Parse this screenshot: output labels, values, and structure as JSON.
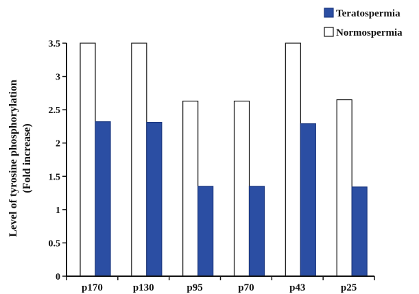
{
  "chart_data": {
    "type": "bar",
    "ylabel_line1": "Level of tyrosine phosphorylation",
    "ylabel_line2": "(Fold increase)",
    "categories": [
      "p170",
      "p130",
      "p95",
      "p70",
      "p43",
      "p25"
    ],
    "series": [
      {
        "name": "Normospermia",
        "color": "#ffffff",
        "values": [
          3.5,
          3.5,
          2.63,
          2.63,
          3.5,
          2.65
        ]
      },
      {
        "name": "Teratospermia",
        "color": "#2b4ea3",
        "values": [
          2.32,
          2.31,
          1.35,
          1.35,
          2.29,
          1.34
        ]
      }
    ],
    "ylim": [
      0,
      3.5
    ],
    "yticks": [
      "0",
      "0.5",
      "1",
      "1.5",
      "2",
      "2.5",
      "3",
      "3.5"
    ],
    "grid": false,
    "legend": {
      "placement": "top-right",
      "entries": [
        "Teratospermia",
        "Normospermia"
      ]
    }
  }
}
